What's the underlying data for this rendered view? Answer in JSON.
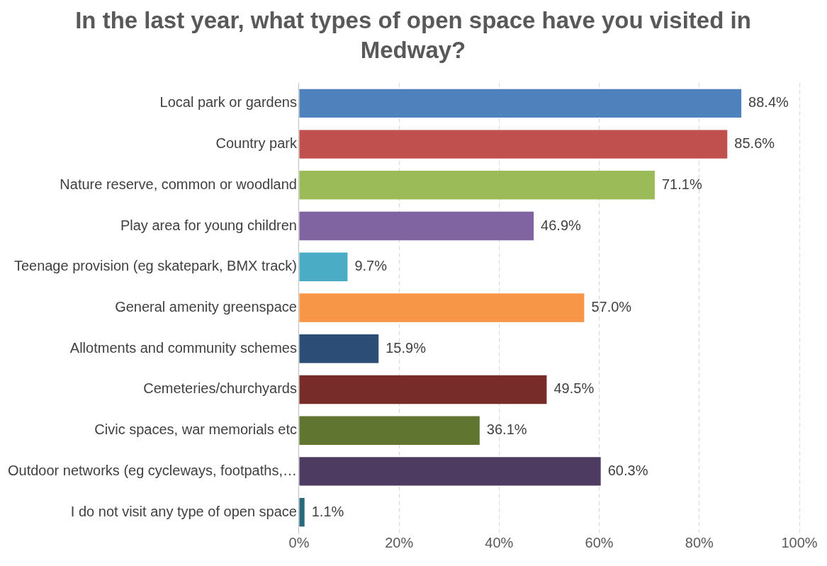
{
  "chart_data": {
    "type": "bar",
    "orientation": "horizontal",
    "title": "In the last year, what types of open space have you visited in Medway?",
    "categories": [
      "Local park or gardens",
      "Country park",
      "Nature reserve, common or woodland",
      "Play area for young children",
      "Teenage provision (eg skatepark, BMX track)",
      "General amenity greenspace",
      "Allotments and community schemes",
      "Cemeteries/churchyards",
      "Civic spaces, war memorials etc",
      "Outdoor networks (eg cycleways, footpaths,…",
      "I do not visit any type of open space"
    ],
    "values": [
      88.4,
      85.6,
      71.1,
      46.9,
      9.7,
      57.0,
      15.9,
      49.5,
      36.1,
      60.3,
      1.1
    ],
    "value_labels": [
      "88.4%",
      "85.6%",
      "71.1%",
      "46.9%",
      "9.7%",
      "57.0%",
      "15.9%",
      "49.5%",
      "36.1%",
      "60.3%",
      "1.1%"
    ],
    "colors": [
      "#4f81bd",
      "#c0504d",
      "#9bbb59",
      "#8064a2",
      "#4bacc6",
      "#f79646",
      "#2c4d75",
      "#772c2a",
      "#5f7530",
      "#4d3b62",
      "#276a7c"
    ],
    "xlim": [
      0,
      100
    ],
    "xticks": [
      {
        "value": 0,
        "label": "0%"
      },
      {
        "value": 20,
        "label": "20%"
      },
      {
        "value": 40,
        "label": "40%"
      },
      {
        "value": 60,
        "label": "60%"
      },
      {
        "value": 80,
        "label": "80%"
      },
      {
        "value": 100,
        "label": "100%"
      }
    ],
    "grid": "x",
    "legend": false
  }
}
